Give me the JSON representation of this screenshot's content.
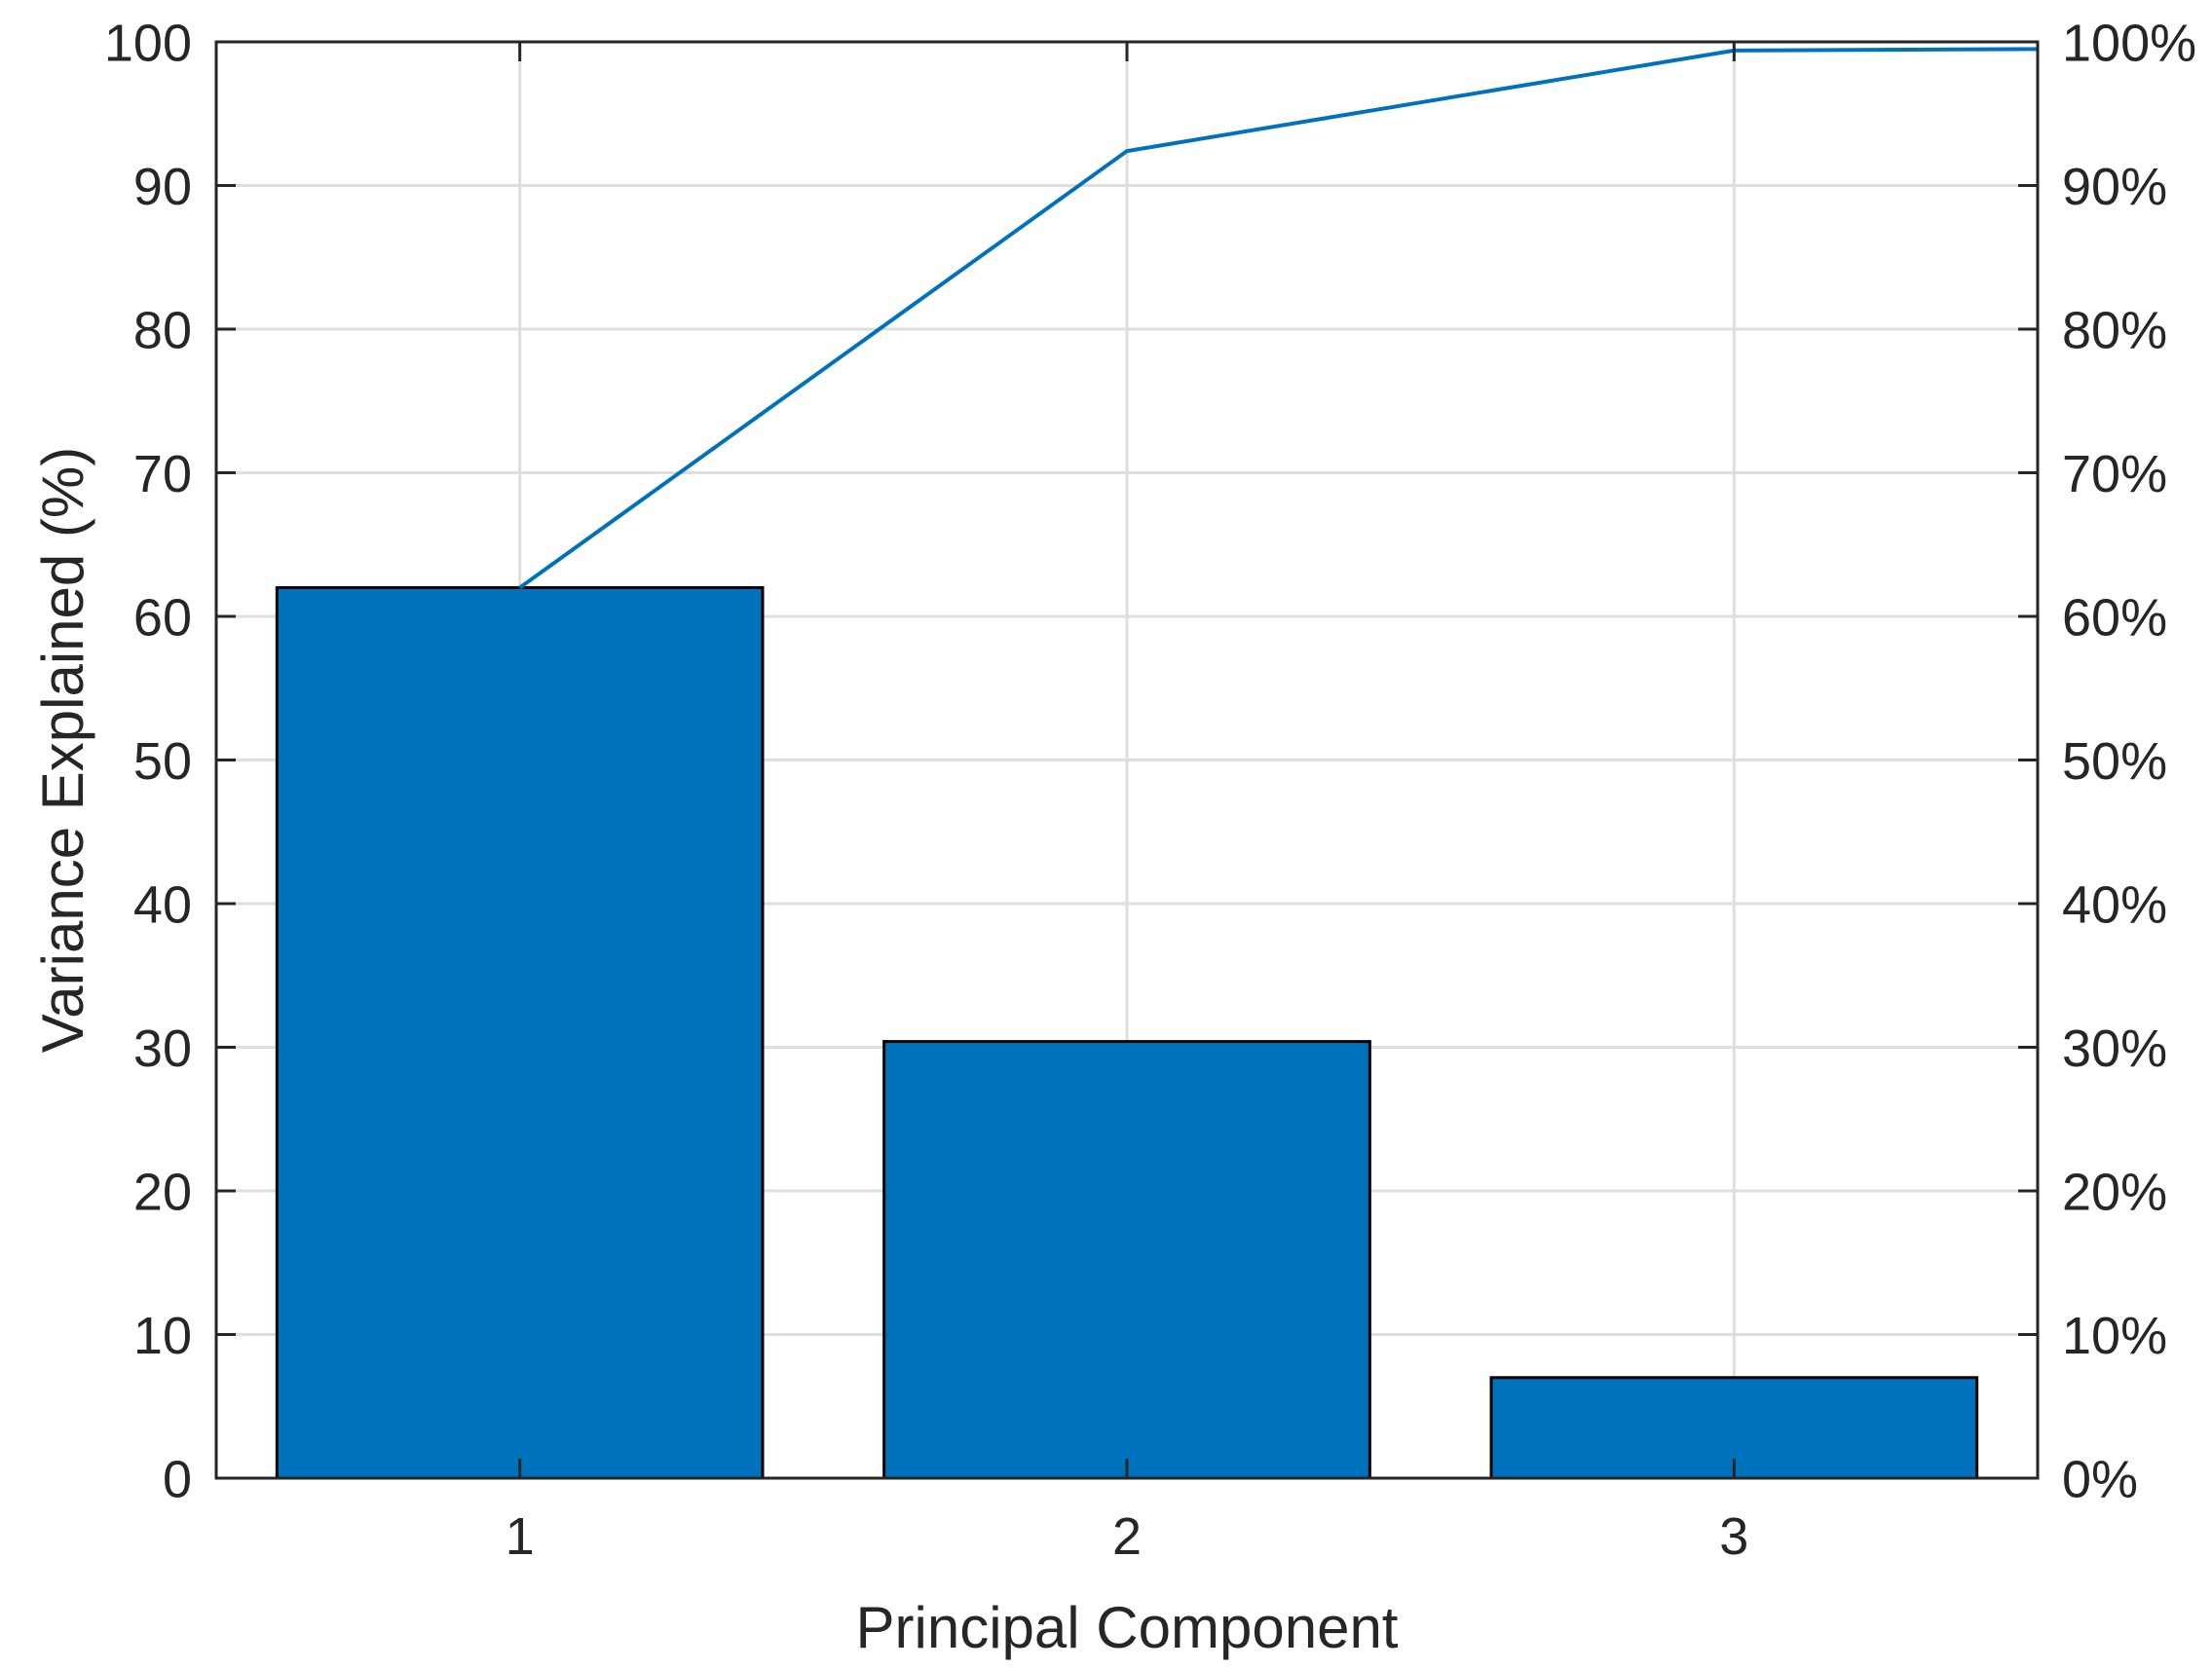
{
  "chart_data": {
    "type": "bar",
    "subtype": "pareto",
    "title": "",
    "xlabel": "Principal Component",
    "ylabel": "Variance Explained (%)",
    "categories": [
      "1",
      "2",
      "3"
    ],
    "series": [
      {
        "name": "variance-explained-bars",
        "type": "bar",
        "values": [
          62.0,
          30.4,
          7.0
        ]
      },
      {
        "name": "cumulative-variance-line",
        "type": "line",
        "values": [
          62.0,
          92.4,
          99.4
        ],
        "right_edge_value": 99.5
      }
    ],
    "left_axis": {
      "range": [
        0,
        100
      ],
      "tick_step": 10,
      "tick_labels": [
        "0",
        "10",
        "20",
        "30",
        "40",
        "50",
        "60",
        "70",
        "80",
        "90",
        "100"
      ]
    },
    "right_axis": {
      "range": [
        0,
        100
      ],
      "tick_step": 10,
      "tick_labels": [
        "0%",
        "10%",
        "20%",
        "30%",
        "40%",
        "50%",
        "60%",
        "70%",
        "80%",
        "90%",
        "100%"
      ]
    },
    "x_axis": {
      "range": [
        0.5,
        3.5
      ],
      "tick_labels": [
        "1",
        "2",
        "3"
      ]
    },
    "grid": true,
    "legend": "none",
    "colors": {
      "bar_fill": "#0072BD",
      "bar_edge": "#000000",
      "line": "#0072BD",
      "grid": "#DEDEDE",
      "axis": "#262626",
      "text": "#262626",
      "background": "#FFFFFF"
    }
  }
}
